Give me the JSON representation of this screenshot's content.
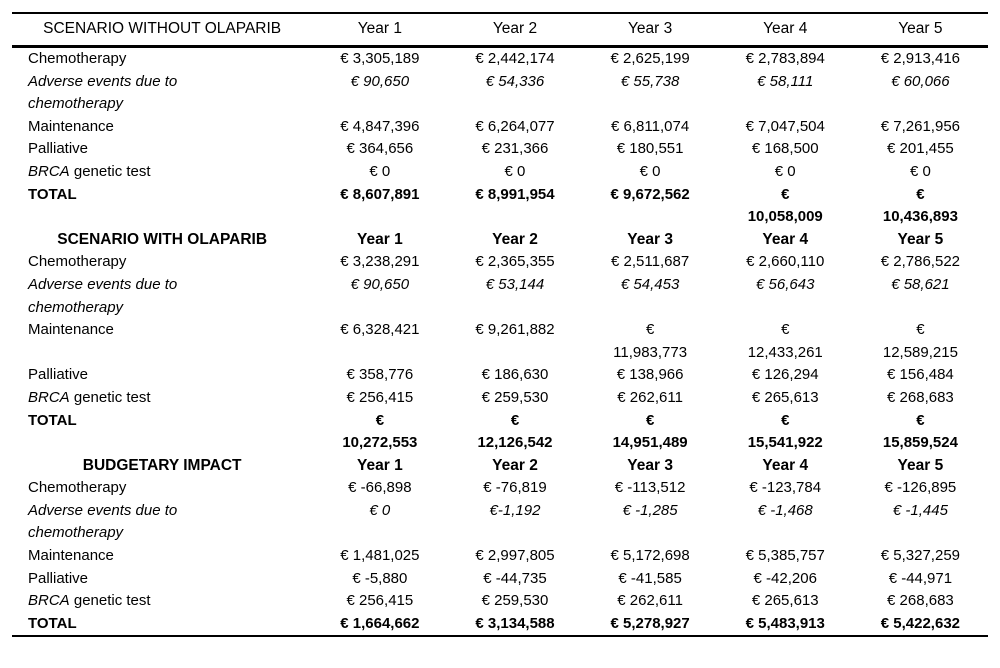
{
  "table": {
    "sections": [
      {
        "title": "SCENARIO WITHOUT OLAPARIB",
        "years": [
          "Year 1",
          "Year 2",
          "Year 3",
          "Year 4",
          "Year 5"
        ],
        "rows": [
          {
            "label": "Chemotherapy",
            "values": [
              "€ 3,305,189",
              "€ 2,442,174",
              "€ 2,625,199",
              "€ 2,783,894",
              "€ 2,913,416"
            ]
          },
          {
            "label": "Adverse events due to\nchemotherapy",
            "values": [
              "€ 90,650",
              "€ 54,336",
              "€ 55,738",
              "€ 58,111",
              "€ 60,066"
            ]
          },
          {
            "label": "Maintenance",
            "values": [
              "€ 4,847,396",
              "€ 6,264,077",
              "€ 6,811,074",
              "€ 7,047,504",
              "€ 7,261,956"
            ]
          },
          {
            "label": "Palliative",
            "values": [
              "€ 364,656",
              "€ 231,366",
              "€ 180,551",
              "€ 168,500",
              "€ 201,455"
            ]
          },
          {
            "label_italic": "BRCA",
            "label_rest": " genetic test",
            "values": [
              "€ 0",
              "€ 0",
              "€ 0",
              "€ 0",
              "€ 0"
            ]
          },
          {
            "label": "TOTAL",
            "values": [
              "€ 8,607,891",
              "€ 8,991,954",
              "€ 9,672,562",
              "€\n10,058,009",
              "€\n10,436,893"
            ]
          }
        ]
      },
      {
        "title": "SCENARIO WITH OLAPARIB",
        "years": [
          "Year 1",
          "Year 2",
          "Year 3",
          "Year 4",
          "Year 5"
        ],
        "rows": [
          {
            "label": "Chemotherapy",
            "values": [
              "€ 3,238,291",
              "€ 2,365,355",
              "€ 2,511,687",
              "€ 2,660,110",
              "€ 2,786,522"
            ]
          },
          {
            "label": "Adverse events due to\nchemotherapy",
            "values": [
              "€ 90,650",
              "€ 53,144",
              "€ 54,453",
              "€ 56,643",
              "€ 58,621"
            ]
          },
          {
            "label": "Maintenance",
            "values": [
              "€ 6,328,421",
              "€ 9,261,882",
              "€\n11,983,773",
              "€\n12,433,261",
              "€\n12,589,215"
            ]
          },
          {
            "label": "Palliative",
            "values": [
              "€ 358,776",
              "€ 186,630",
              "€ 138,966",
              "€ 126,294",
              "€ 156,484"
            ]
          },
          {
            "label_italic": "BRCA",
            "label_rest": " genetic test",
            "values": [
              "€ 256,415",
              "€ 259,530",
              "€ 262,611",
              "€ 265,613",
              "€ 268,683"
            ]
          },
          {
            "label": "TOTAL",
            "values": [
              "€\n10,272,553",
              "€\n12,126,542",
              "€\n14,951,489",
              "€\n15,541,922",
              "€\n15,859,524"
            ]
          }
        ]
      },
      {
        "title": "BUDGETARY IMPACT",
        "years": [
          "Year 1",
          "Year 2",
          "Year 3",
          "Year 4",
          "Year 5"
        ],
        "rows": [
          {
            "label": "Chemotherapy",
            "values": [
              "€ -66,898",
              "€ -76,819",
              "€ -113,512",
              "€ -123,784",
              "€ -126,895"
            ]
          },
          {
            "label": "Adverse events due to\nchemotherapy",
            "values": [
              "€ 0",
              "€-1,192",
              "€ -1,285",
              "€ -1,468",
              "€ -1,445"
            ]
          },
          {
            "label": "Maintenance",
            "values": [
              "€ 1,481,025",
              "€ 2,997,805",
              "€ 5,172,698",
              "€ 5,385,757",
              "€ 5,327,259"
            ]
          },
          {
            "label": "Palliative",
            "values": [
              "€ -5,880",
              "€ -44,735",
              "€ -41,585",
              "€ -42,206",
              "€ -44,971"
            ]
          },
          {
            "label_italic": "BRCA",
            "label_rest": " genetic test",
            "values": [
              "€ 256,415",
              "€ 259,530",
              "€ 262,611",
              "€ 265,613",
              "€ 268,683"
            ]
          },
          {
            "label": "TOTAL",
            "values": [
              "€ 1,664,662",
              "€ 3,134,588",
              "€ 5,278,927",
              "€ 5,483,913",
              "€ 5,422,632"
            ]
          }
        ]
      }
    ]
  }
}
